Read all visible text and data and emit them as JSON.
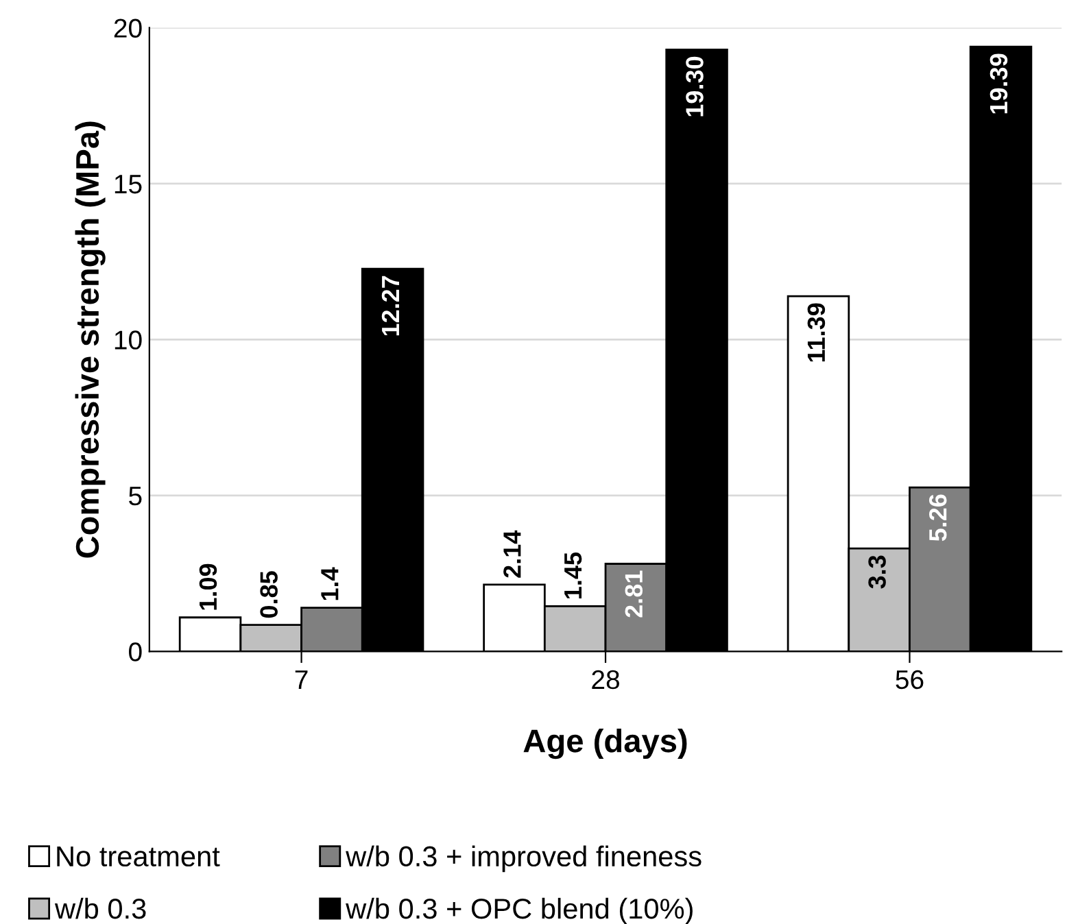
{
  "chart_data": {
    "type": "bar",
    "xlabel": "Age (days)",
    "ylabel": "Compressive strength (MPa)",
    "categories": [
      "7",
      "28",
      "56"
    ],
    "series": [
      {
        "name": "No treatment",
        "color": "#ffffff",
        "values": [
          1.09,
          2.14,
          11.39
        ],
        "value_labels": [
          "1.09",
          "2.14",
          "11.39"
        ]
      },
      {
        "name": "w/b 0.3",
        "color": "#bfbfbf",
        "values": [
          0.85,
          1.45,
          3.3
        ],
        "value_labels": [
          "0.85",
          "1.45",
          "3.3"
        ]
      },
      {
        "name": "w/b 0.3 + improved fineness",
        "color": "#808080",
        "values": [
          1.4,
          2.81,
          5.26
        ],
        "value_labels": [
          "1.4",
          "2.81",
          "5.26"
        ]
      },
      {
        "name": "w/b 0.3 + OPC blend (10%)",
        "color": "#000000",
        "values": [
          12.27,
          19.3,
          19.39
        ],
        "value_labels": [
          "12.27",
          "19.30",
          "19.39"
        ]
      }
    ],
    "ylim": [
      0,
      20
    ],
    "yticks": [
      0,
      5,
      10,
      15,
      20
    ],
    "grid": "y",
    "legend": "bottom"
  }
}
